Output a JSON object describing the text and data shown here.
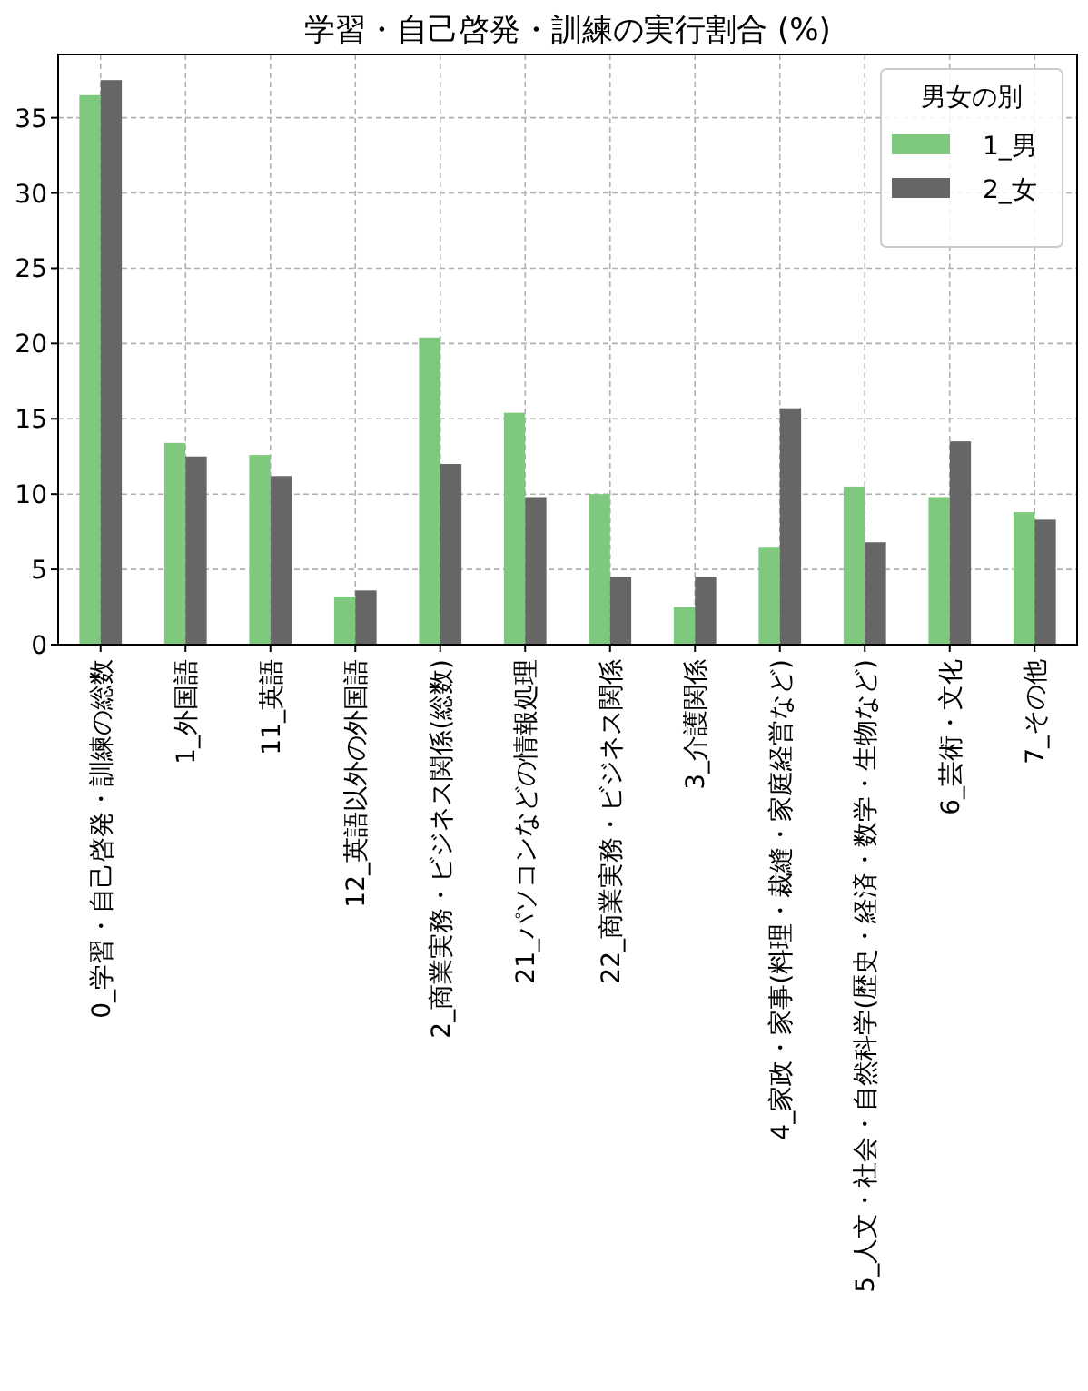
{
  "chart_data": {
    "type": "bar",
    "title": "学習・自己啓発・訓練の実行割合 (%)",
    "legend_title": "男女の別",
    "categories": [
      "0_学習・自己啓発・訓練の総数",
      "1_外国語",
      "11_英語",
      "12_英語以外の外国語",
      "2_商業実務・ビジネス関係(総数)",
      "21_パソコンなどの情報処理",
      "22_商業実務・ビジネス関係",
      "3_介護関係",
      "4_家政・家事(料理・裁縫・家庭経営など)",
      "5_人文・社会・自然科学(歴史・経済・数学・生物など)",
      "6_芸術・文化",
      "7_その他"
    ],
    "series": [
      {
        "name": "1_男",
        "color": "#7fc97f",
        "values": [
          36.5,
          13.4,
          12.6,
          3.2,
          20.4,
          15.4,
          10.0,
          2.5,
          6.5,
          10.5,
          9.8,
          8.8
        ]
      },
      {
        "name": "2_女",
        "color": "#666666",
        "values": [
          37.5,
          12.5,
          11.2,
          3.6,
          12.0,
          9.8,
          4.5,
          4.5,
          15.7,
          6.8,
          13.5,
          8.3
        ]
      }
    ],
    "ylim": [
      0,
      39.2
    ],
    "yticks": [
      0,
      5,
      10,
      15,
      20,
      25,
      30,
      35
    ],
    "grid": true,
    "legend": "top right"
  }
}
